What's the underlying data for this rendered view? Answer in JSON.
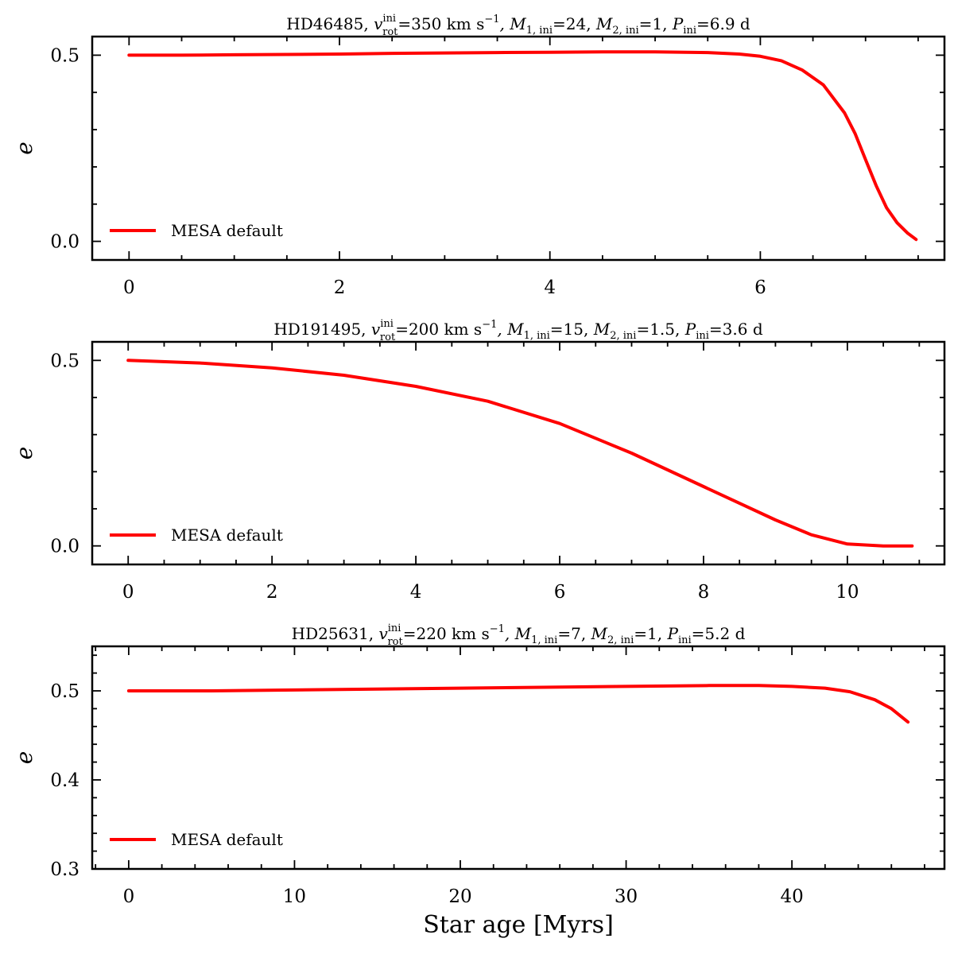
{
  "chart_data": [
    {
      "type": "line",
      "title": {
        "star": "HD46485, ",
        "v_sym": "v",
        "v_sup": "ini",
        "v_sub": "rot",
        "v_rest": "=350 km s",
        "exp": "−1",
        "m1_sym": ", M",
        "m1_sub": "1, ini",
        "m1_rest": "=24, ",
        "m2_sym": "M",
        "m2_sub": "2, ini",
        "m2_rest": "=1, ",
        "p_sym": "P",
        "p_sub": "ini",
        "p_rest": "=6.9 d"
      },
      "ylabel": "e",
      "xlim": [
        -0.35,
        7.75
      ],
      "ylim": [
        -0.05,
        0.55
      ],
      "xticks": [
        0,
        2,
        4,
        6
      ],
      "xtick_labels": [
        "0",
        "2",
        "4",
        "6"
      ],
      "xminor_step": 0.5,
      "yticks": [
        0.0,
        0.5
      ],
      "ytick_labels": [
        "0.0",
        "0.5"
      ],
      "yminor_step": 0.1,
      "legend": "MESA default",
      "legend_loc": "lower-left",
      "series": [
        {
          "name": "MESA default",
          "color": "#ff0000",
          "x": [
            0,
            0.5,
            1,
            1.5,
            2,
            2.5,
            3,
            3.5,
            4,
            4.5,
            5,
            5.5,
            5.8,
            6.0,
            6.2,
            6.4,
            6.6,
            6.8,
            6.9,
            7.0,
            7.1,
            7.2,
            7.3,
            7.4,
            7.48
          ],
          "y": [
            0.5,
            0.5,
            0.501,
            0.502,
            0.503,
            0.505,
            0.506,
            0.507,
            0.508,
            0.509,
            0.509,
            0.507,
            0.503,
            0.497,
            0.485,
            0.46,
            0.42,
            0.345,
            0.29,
            0.22,
            0.15,
            0.09,
            0.05,
            0.022,
            0.005
          ]
        }
      ]
    },
    {
      "type": "line",
      "title": {
        "star": "HD191495, ",
        "v_sym": "v",
        "v_sup": "ini",
        "v_sub": "rot",
        "v_rest": "=200 km s",
        "exp": "−1",
        "m1_sym": ", M",
        "m1_sub": "1, ini",
        "m1_rest": "=15, ",
        "m2_sym": "M",
        "m2_sub": "2, ini",
        "m2_rest": "=1.5, ",
        "p_sym": "P",
        "p_sub": "ini",
        "p_rest": "=3.6 d"
      },
      "ylabel": "e",
      "xlim": [
        -0.5,
        11.35
      ],
      "ylim": [
        -0.05,
        0.55
      ],
      "xticks": [
        0,
        2,
        4,
        6,
        8,
        10
      ],
      "xtick_labels": [
        "0",
        "2",
        "4",
        "6",
        "8",
        "10"
      ],
      "xminor_step": 0.5,
      "yticks": [
        0.0,
        0.5
      ],
      "ytick_labels": [
        "0.0",
        "0.5"
      ],
      "yminor_step": 0.1,
      "legend": "MESA default",
      "legend_loc": "lower-left",
      "series": [
        {
          "name": "MESA default",
          "color": "#ff0000",
          "x": [
            0,
            1,
            2,
            3,
            4,
            5,
            6,
            7,
            8,
            9,
            9.5,
            10,
            10.5,
            10.9
          ],
          "y": [
            0.5,
            0.493,
            0.48,
            0.46,
            0.43,
            0.39,
            0.33,
            0.25,
            0.16,
            0.07,
            0.03,
            0.005,
            0.0,
            0.0
          ]
        }
      ]
    },
    {
      "type": "line",
      "title": {
        "star": "HD25631, ",
        "v_sym": "v",
        "v_sup": "ini",
        "v_sub": "rot",
        "v_rest": "=220 km s",
        "exp": "−1",
        "m1_sym": ", M",
        "m1_sub": "1, ini",
        "m1_rest": "=7, ",
        "m2_sym": "M",
        "m2_sub": "2, ini",
        "m2_rest": "=1, ",
        "p_sym": "P",
        "p_sub": "ini",
        "p_rest": "=5.2 d"
      },
      "ylabel": "e",
      "xlabel": "Star age [Myrs]",
      "xlim": [
        -2.2,
        49.2
      ],
      "ylim": [
        0.3,
        0.55
      ],
      "xticks": [
        0,
        10,
        20,
        30,
        40
      ],
      "xtick_labels": [
        "0",
        "10",
        "20",
        "30",
        "40"
      ],
      "xminor_step": 2,
      "yticks": [
        0.3,
        0.4,
        0.5
      ],
      "ytick_labels": [
        "0.3",
        "0.4",
        "0.5"
      ],
      "yminor_step": 0.02,
      "legend": "MESA default",
      "legend_loc": "lower-left",
      "series": [
        {
          "name": "MESA default",
          "color": "#ff0000",
          "x": [
            0,
            5,
            10,
            15,
            20,
            25,
            30,
            35,
            38,
            40,
            42,
            43.5,
            45,
            46,
            47
          ],
          "y": [
            0.5,
            0.5,
            0.501,
            0.502,
            0.503,
            0.504,
            0.505,
            0.506,
            0.506,
            0.505,
            0.503,
            0.499,
            0.49,
            0.48,
            0.465
          ]
        }
      ]
    }
  ]
}
